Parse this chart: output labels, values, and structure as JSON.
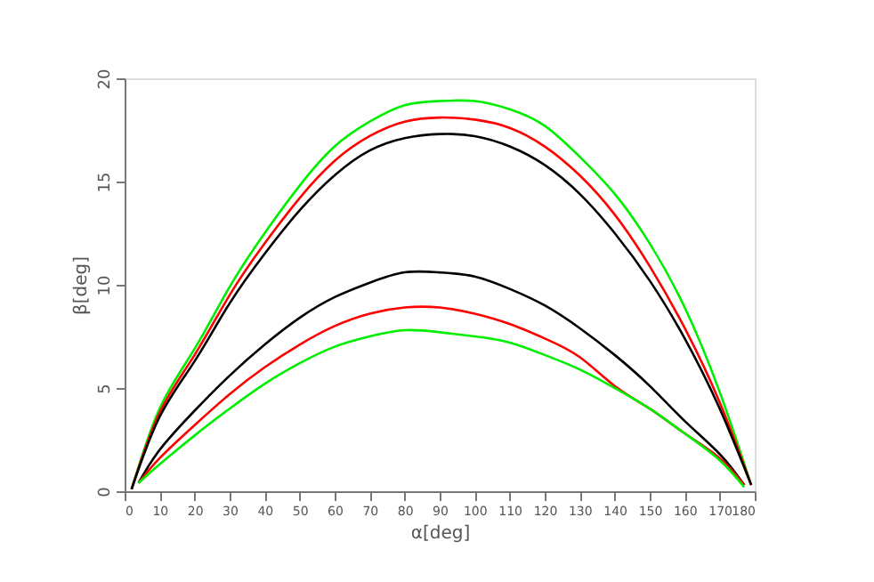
{
  "chart_data": {
    "type": "line",
    "xlabel": "α[deg]",
    "ylabel": "β[deg]",
    "x": [
      2,
      10,
      20,
      30,
      40,
      50,
      60,
      70,
      80,
      90,
      100,
      110,
      120,
      130,
      140,
      150,
      160,
      170,
      179
    ],
    "series": [
      {
        "color": "#00ee00",
        "values": [
          0.1,
          4.0,
          6.9,
          9.9,
          12.5,
          14.8,
          16.7,
          17.9,
          18.7,
          18.9,
          18.9,
          18.5,
          17.7,
          16.2,
          14.4,
          12.0,
          8.9,
          4.8,
          0.3
        ]
      },
      {
        "color": "#ff0000",
        "values": [
          0.1,
          3.8,
          6.6,
          9.5,
          12.0,
          14.2,
          16.0,
          17.2,
          17.9,
          18.1,
          18.0,
          17.6,
          16.7,
          15.3,
          13.4,
          10.9,
          7.9,
          4.3,
          0.3
        ]
      },
      {
        "color": "#000000",
        "values": [
          0.1,
          3.6,
          6.3,
          9.1,
          11.5,
          13.6,
          15.3,
          16.5,
          17.1,
          17.3,
          17.2,
          16.7,
          15.8,
          14.4,
          12.5,
          10.2,
          7.4,
          4.0,
          0.3
        ]
      },
      {
        "color": "#000000",
        "x": [
          4,
          10,
          20,
          30,
          40,
          50,
          60,
          70,
          80,
          90,
          100,
          110,
          120,
          130,
          140,
          150,
          160,
          170,
          177
        ],
        "values": [
          0.4,
          2.0,
          3.9,
          5.6,
          7.1,
          8.4,
          9.4,
          10.1,
          10.6,
          10.6,
          10.4,
          9.8,
          9.0,
          7.9,
          6.6,
          5.1,
          3.4,
          1.8,
          0.3
        ]
      },
      {
        "color": "#ff0000",
        "x": [
          4,
          10,
          20,
          30,
          40,
          50,
          60,
          70,
          80,
          90,
          100,
          110,
          120,
          130,
          140,
          150,
          160,
          170,
          177
        ],
        "values": [
          0.4,
          1.6,
          3.2,
          4.7,
          6.0,
          7.1,
          8.0,
          8.6,
          8.9,
          8.9,
          8.6,
          8.1,
          7.4,
          6.5,
          5.1,
          4.0,
          2.8,
          1.6,
          0.3
        ]
      },
      {
        "color": "#00ee00",
        "x": [
          4,
          10,
          20,
          30,
          40,
          50,
          60,
          70,
          80,
          90,
          100,
          110,
          120,
          130,
          140,
          150,
          160,
          170,
          177
        ],
        "values": [
          0.4,
          1.3,
          2.7,
          4.0,
          5.2,
          6.2,
          7.0,
          7.5,
          7.8,
          7.7,
          7.5,
          7.2,
          6.6,
          5.9,
          5.0,
          4.0,
          2.8,
          1.5,
          0.2
        ]
      }
    ],
    "xlim": [
      0,
      180
    ],
    "xticks": [
      0,
      10,
      20,
      30,
      40,
      50,
      60,
      70,
      80,
      90,
      100,
      110,
      120,
      130,
      140,
      150,
      160,
      170,
      180
    ],
    "ylim": [
      0,
      20
    ],
    "yticks": [
      0,
      5,
      10,
      15,
      20
    ],
    "grid": false,
    "marker": "none",
    "line_style": "solid"
  }
}
